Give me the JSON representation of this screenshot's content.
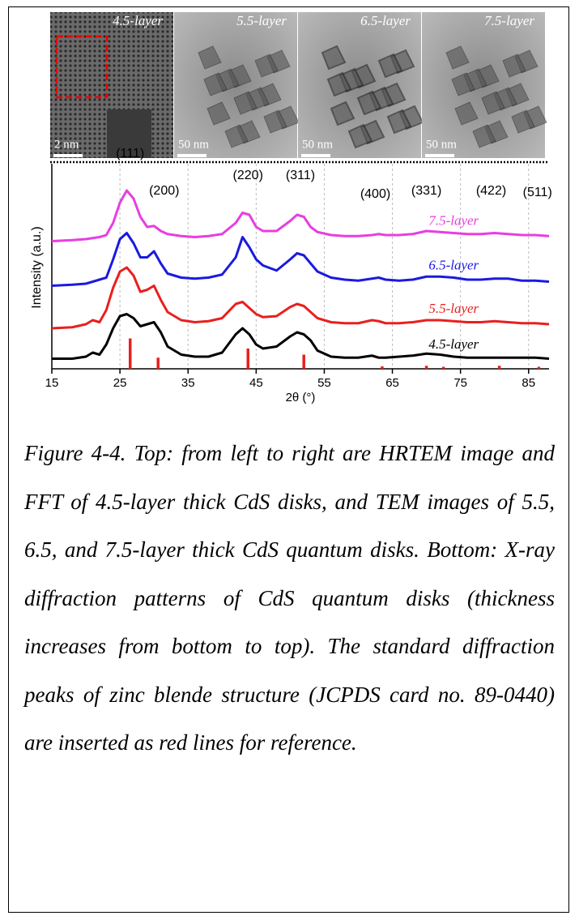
{
  "figure": {
    "images": [
      {
        "label": "4.5-layer",
        "scale": "2 nm"
      },
      {
        "label": "5.5-layer",
        "scale": "50 nm"
      },
      {
        "label": "6.5-layer",
        "scale": "50 nm"
      },
      {
        "label": "7.5-layer",
        "scale": "50 nm"
      }
    ]
  },
  "chart_data": {
    "type": "line",
    "x_label": "2θ (°)",
    "y_label": "Intensity (a.u.)",
    "xlim": [
      15,
      88
    ],
    "ylim": [
      0,
      100
    ],
    "xticks": [
      15,
      25,
      35,
      45,
      55,
      65,
      75,
      85
    ],
    "grid": true,
    "x": [
      15,
      18,
      20,
      21,
      22,
      23,
      24,
      25,
      26,
      27,
      28,
      29,
      30,
      31,
      32,
      34,
      36,
      38,
      40,
      42,
      43,
      44,
      45,
      46,
      48,
      50,
      51,
      52,
      53,
      54,
      56,
      58,
      60,
      62,
      63,
      64,
      66,
      68,
      70,
      72,
      74,
      76,
      78,
      80,
      82,
      84,
      86,
      88
    ],
    "series": [
      {
        "name": "4.5-layer",
        "color": "#000000",
        "values": [
          5,
          5,
          6,
          8,
          7,
          12,
          20,
          26,
          27,
          25,
          21,
          22,
          23,
          18,
          11,
          7,
          6,
          6,
          8,
          17,
          20,
          17,
          12,
          10,
          11,
          16,
          18,
          17,
          14,
          9,
          6,
          5.5,
          5.5,
          6.5,
          5.5,
          5.5,
          6,
          6.5,
          7.5,
          7,
          6,
          5.5,
          5.5,
          5.5,
          5.5,
          5.5,
          5.5,
          5
        ]
      },
      {
        "name": "5.5-layer",
        "color": "#e8201e",
        "values": [
          20,
          20.5,
          22,
          24,
          23,
          29,
          40,
          48,
          50,
          46,
          38,
          39,
          41,
          34,
          28,
          24,
          23,
          23.5,
          25,
          32,
          33,
          30,
          27,
          25.5,
          26,
          30.5,
          32,
          31,
          28,
          25,
          23,
          22.5,
          22.5,
          24,
          23.5,
          22.5,
          22.5,
          23,
          24,
          24,
          23.5,
          23,
          23,
          23.5,
          23,
          22.5,
          22.5,
          22
        ]
      },
      {
        "name": "6.5-layer",
        "color": "#1a1ae0",
        "values": [
          41,
          41.5,
          42,
          43,
          44,
          45,
          54,
          64,
          67,
          62,
          55,
          55,
          58,
          52,
          47,
          45,
          44.5,
          45,
          46.5,
          55,
          65,
          60,
          54,
          51,
          48.5,
          54,
          57,
          56,
          52,
          48,
          45,
          44,
          43.5,
          44.5,
          45,
          44,
          43.5,
          44,
          45.5,
          45.5,
          45,
          44,
          44,
          44.5,
          44.5,
          43.5,
          43.5,
          43
        ]
      },
      {
        "name": "7.5-layer",
        "color": "#e83ee0",
        "values": [
          63,
          63.5,
          64,
          64.5,
          65,
          66,
          72,
          82,
          88,
          84,
          75,
          70,
          70.5,
          68,
          66.5,
          65.5,
          65,
          65.5,
          66.5,
          72,
          77,
          76,
          70,
          68,
          68,
          73,
          76,
          75,
          70,
          67.5,
          66,
          65.5,
          65.5,
          66,
          66.5,
          66,
          66,
          66.5,
          68,
          67.5,
          67,
          66.5,
          66.5,
          67,
          66.5,
          66,
          66,
          65.5
        ]
      }
    ],
    "reference": {
      "color": "#e8201e",
      "x": [
        26.5,
        30.6,
        43.8,
        52,
        63.5,
        70,
        72.5,
        80.7,
        86.5
      ],
      "values": [
        15,
        5.5,
        10,
        7,
        1.2,
        1.5,
        1,
        1.5,
        1
      ]
    },
    "annotations": [
      {
        "text": "(111)",
        "x": 26.5
      },
      {
        "text": "(200)",
        "x": 31.5
      },
      {
        "text": "(220)",
        "x": 43.8
      },
      {
        "text": "(311)",
        "x": 51.5
      },
      {
        "text": "(400)",
        "x": 62.5
      },
      {
        "text": "(331)",
        "x": 70
      },
      {
        "text": "(422)",
        "x": 79.5
      },
      {
        "text": "(511)",
        "x": 86.3
      }
    ]
  },
  "caption": "Figure 4-4. Top: from left to right are HRTEM image and FFT of 4.5-layer thick CdS disks, and TEM images of 5.5, 6.5, and 7.5-layer thick CdS quantum disks. Bottom: X-ray diffraction patterns of CdS quantum disks (thickness increases from bottom to top). The standard diffraction peaks of zinc blende structure (JCPDS card no. 89-0440) are inserted as red lines for reference."
}
